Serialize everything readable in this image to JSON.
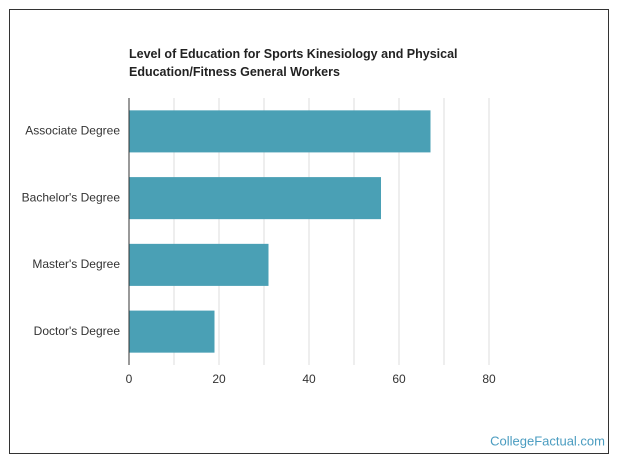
{
  "chart_data": {
    "type": "bar",
    "orientation": "horizontal",
    "title": "Level of Education for Sports Kinesiology and Physical Education/Fitness General Workers",
    "categories": [
      "Associate Degree",
      "Bachelor's Degree",
      "Master's Degree",
      "Doctor's Degree"
    ],
    "values": [
      67,
      56,
      31,
      19
    ],
    "color": "#4aa0b5",
    "xlim": [
      0,
      80
    ],
    "xticks": [
      0,
      20,
      40,
      60,
      80
    ],
    "minor_xticks": [
      10,
      30,
      50,
      70
    ],
    "grid": true,
    "source": "CollegeFactual.com"
  }
}
